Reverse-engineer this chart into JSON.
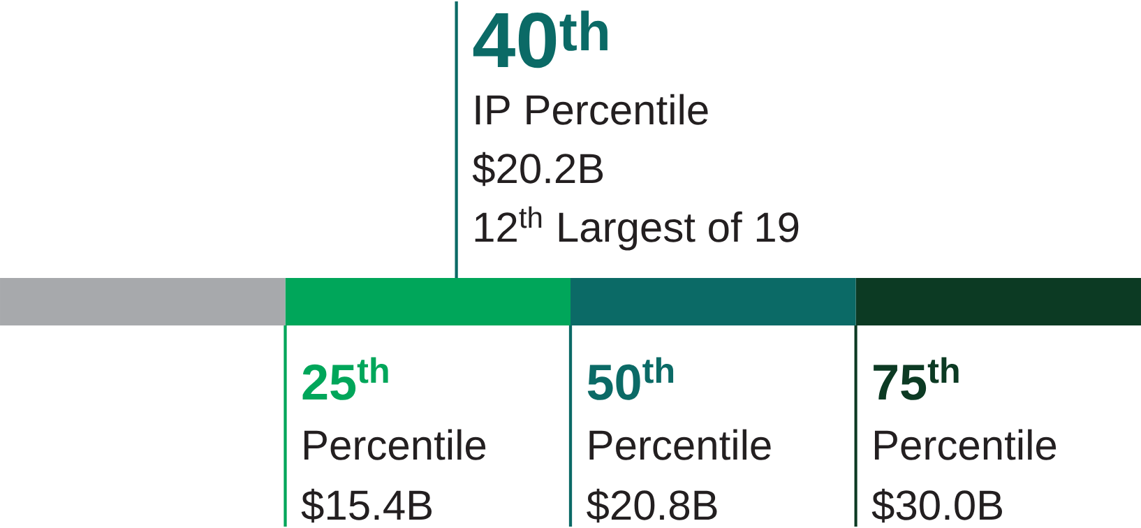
{
  "chart_data": {
    "type": "bar",
    "orientation": "horizontal",
    "stacked": true,
    "categories": [
      null
    ],
    "xlim": [
      0,
      100
    ],
    "tick_labels": false,
    "series": [
      {
        "color": "#a7a9ac",
        "values": [
          25
        ]
      },
      {
        "color": "#00a65a",
        "values": [
          25
        ]
      },
      {
        "color": "#0b6a66",
        "values": [
          25
        ]
      },
      {
        "color": "#0c3a23",
        "values": [
          25
        ]
      }
    ],
    "ref_lines": [
      {
        "axis": "x",
        "value": 40,
        "label": "40$^{th}$",
        "color": "#0b6a66"
      },
      {
        "axis": "x",
        "value": 25,
        "label": "25$^{th}$",
        "color": "#00a65a"
      },
      {
        "axis": "x",
        "value": 50,
        "label": "50$^{th}$",
        "color": "#0b6a66"
      },
      {
        "axis": "x",
        "value": 75,
        "label": "75$^{th}$",
        "color": "#0c3a23"
      }
    ],
    "annotations": [
      {
        "text": "IP Percentile",
        "x": 40
      },
      {
        "text": "$20.2B",
        "x": 40
      },
      {
        "text": "12$^{th}$ Largest of 19",
        "x": 40
      },
      {
        "text": "Percentile",
        "x": 25
      },
      {
        "text": "$15.4B",
        "x": 25
      },
      {
        "text": "Percentile",
        "x": 50
      },
      {
        "text": "$20.8B",
        "x": 50
      },
      {
        "text": "Percentile",
        "x": 75
      },
      {
        "text": "$30.0B",
        "x": 75
      }
    ]
  }
}
